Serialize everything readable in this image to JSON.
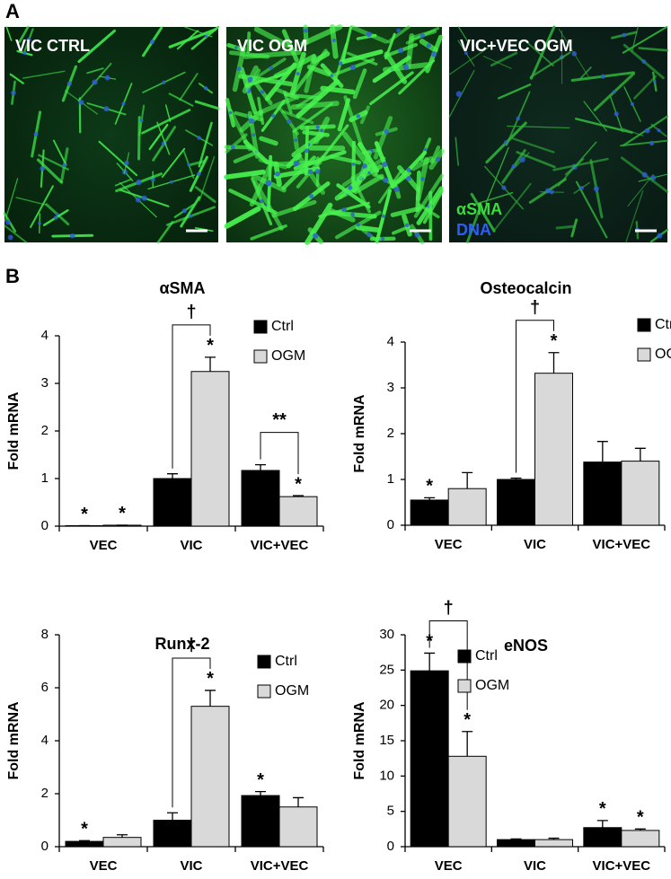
{
  "panel_a": {
    "label": "A",
    "images": [
      "VIC CTRL",
      "VIC OGM",
      "VIC+VEC OGM"
    ],
    "stain_labels": [
      "αSMA",
      "DNA"
    ]
  },
  "panel_b": {
    "label": "B"
  },
  "chart_data": [
    {
      "type": "bar",
      "title": "αSMA",
      "ylabel": "Fold mRNA",
      "categories": [
        "VEC",
        "VIC",
        "VIC+VEC"
      ],
      "series": [
        {
          "name": "Ctrl",
          "color": "#000000",
          "values": [
            0.01,
            1.0,
            1.17
          ],
          "errors": [
            0,
            0.1,
            0.12
          ],
          "stars": [
            "*",
            null,
            null
          ]
        },
        {
          "name": "OGM",
          "color": "#d9d9d9",
          "values": [
            0.02,
            3.25,
            0.62
          ],
          "errors": [
            0,
            0.3,
            0.02
          ],
          "stars": [
            "*",
            "*",
            "*"
          ]
        }
      ],
      "brackets": [
        null,
        "†",
        "**"
      ],
      "ylim": [
        0,
        4
      ],
      "yticks": [
        0,
        1,
        2,
        3,
        4
      ],
      "legend": "upper right"
    },
    {
      "type": "bar",
      "title": "Osteocalcin",
      "ylabel": "Fold mRNA",
      "categories": [
        "VEC",
        "VIC",
        "VIC+VEC"
      ],
      "series": [
        {
          "name": "Ctrl",
          "color": "#000000",
          "values": [
            0.55,
            1.0,
            1.38
          ],
          "errors": [
            0.05,
            0.03,
            0.45
          ],
          "stars": [
            "*",
            null,
            null
          ]
        },
        {
          "name": "OGM",
          "color": "#d9d9d9",
          "values": [
            0.8,
            3.32,
            1.4
          ],
          "errors": [
            0.35,
            0.45,
            0.28
          ],
          "stars": [
            null,
            "*",
            null
          ]
        }
      ],
      "brackets": [
        null,
        "†",
        null
      ],
      "ylim": [
        0,
        4
      ],
      "yticks": [
        0,
        1,
        2,
        3,
        4
      ],
      "legend": "upper right"
    },
    {
      "type": "bar",
      "title": "Runx-2",
      "ylabel": "Fold mRNA",
      "categories": [
        "VEC",
        "VIC",
        "VIC+VEC"
      ],
      "series": [
        {
          "name": "Ctrl",
          "color": "#000000",
          "values": [
            0.2,
            1.0,
            1.93
          ],
          "errors": [
            0.03,
            0.28,
            0.15
          ],
          "stars": [
            "*",
            null,
            "*"
          ]
        },
        {
          "name": "OGM",
          "color": "#d9d9d9",
          "values": [
            0.35,
            5.3,
            1.5
          ],
          "errors": [
            0.1,
            0.6,
            0.35
          ],
          "stars": [
            null,
            "*",
            null
          ]
        }
      ],
      "brackets": [
        null,
        "†",
        null
      ],
      "ylim": [
        0,
        8
      ],
      "yticks": [
        0,
        2,
        4,
        6,
        8
      ],
      "legend": "upper right"
    },
    {
      "type": "bar",
      "title": "eNOS",
      "ylabel": "Fold mRNA",
      "categories": [
        "VEC",
        "VIC",
        "VIC+VEC"
      ],
      "series": [
        {
          "name": "Ctrl",
          "color": "#000000",
          "values": [
            24.9,
            1.0,
            2.7
          ],
          "errors": [
            2.5,
            0.1,
            1.0
          ],
          "stars": [
            "*",
            null,
            "*"
          ]
        },
        {
          "name": "OGM",
          "color": "#d9d9d9",
          "values": [
            12.8,
            1.0,
            2.3
          ],
          "errors": [
            3.5,
            0.2,
            0.2
          ],
          "stars": [
            "*",
            null,
            "*"
          ]
        }
      ],
      "brackets": [
        "†",
        null,
        null
      ],
      "ylim": [
        0,
        30
      ],
      "yticks": [
        0,
        5,
        10,
        15,
        20,
        25,
        30
      ],
      "legend": "upper right"
    }
  ]
}
